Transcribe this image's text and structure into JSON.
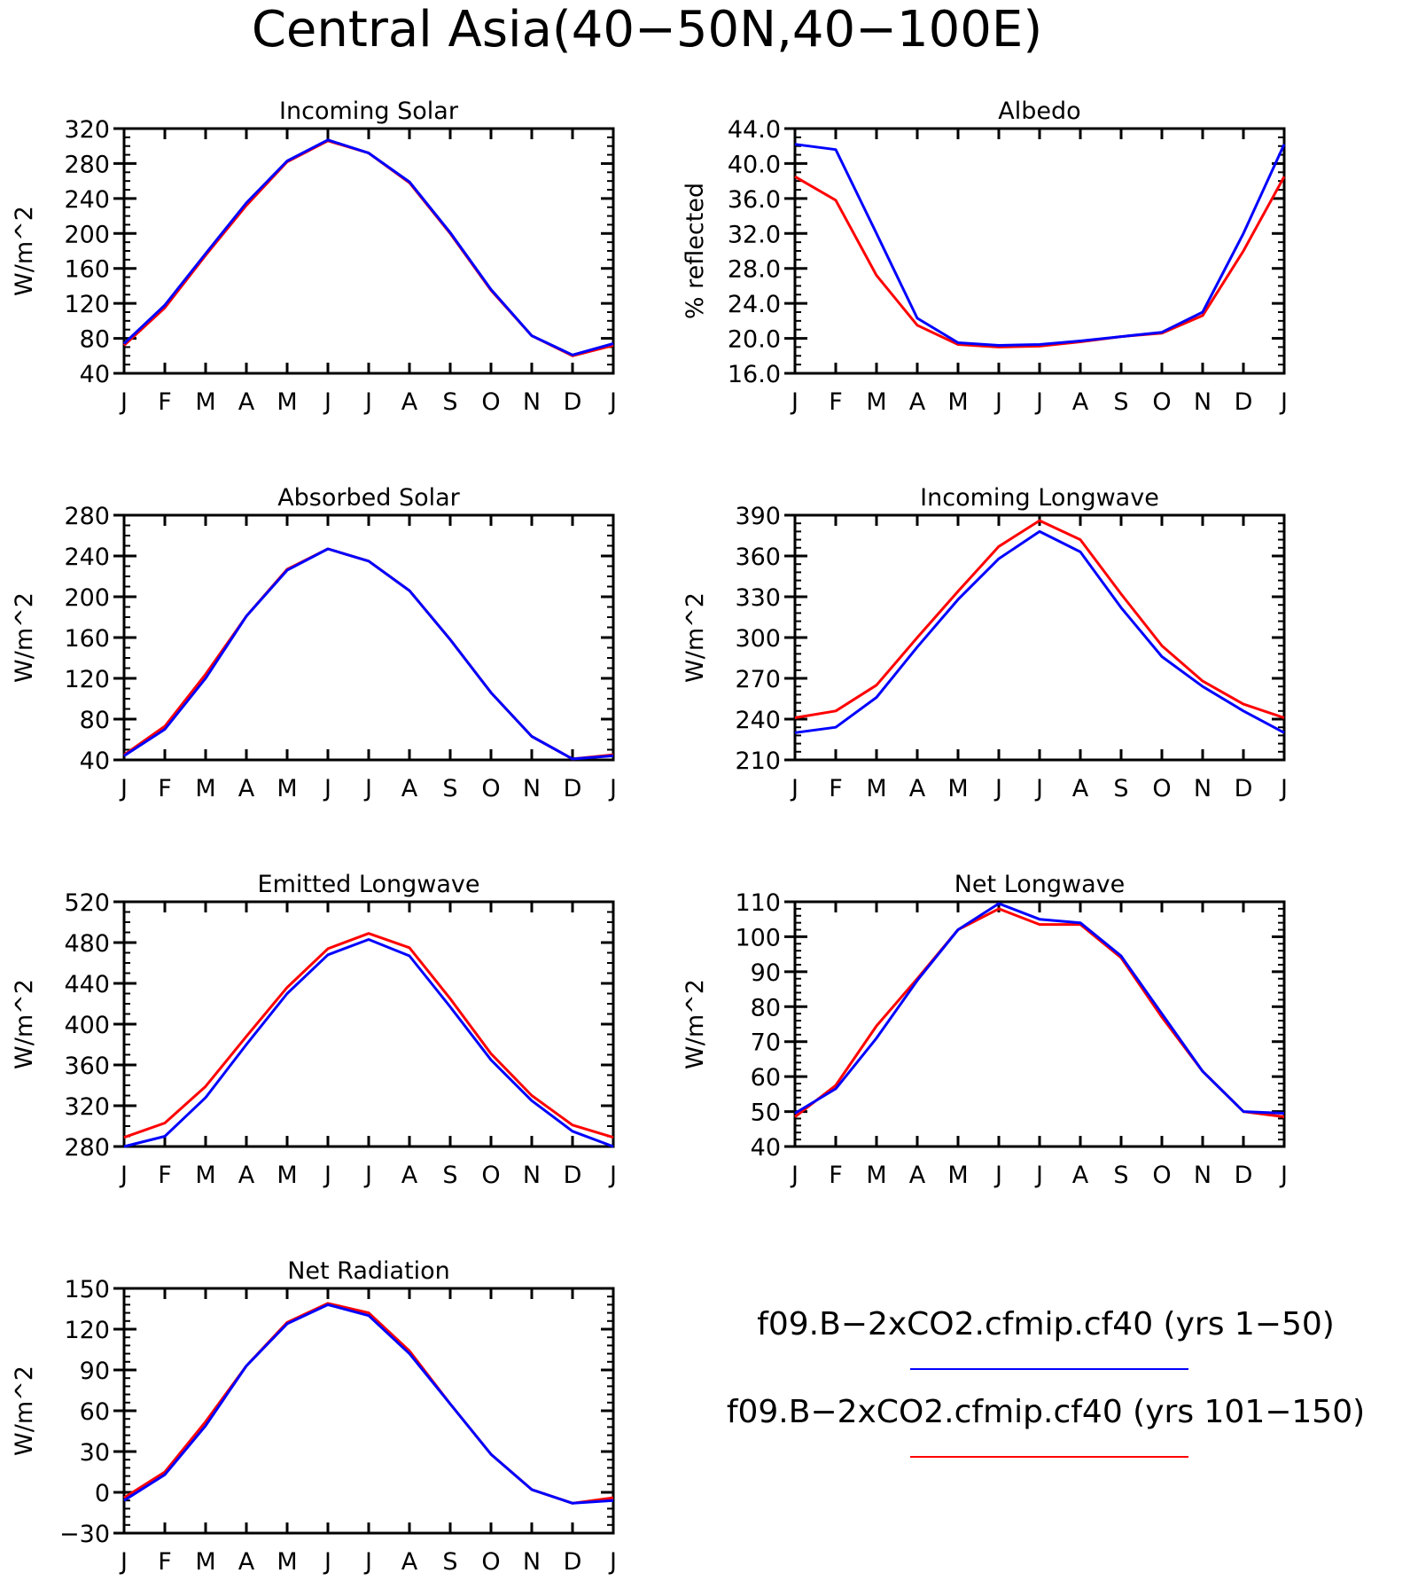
{
  "figure": {
    "title": "Central Asia(40−50N,40−100E)"
  },
  "legend": {
    "entries": [
      {
        "label": "f09.B−2xCO2.cfmip.cf40 (yrs 1−50)",
        "color": "#0000ff"
      },
      {
        "label": "f09.B−2xCO2.cfmip.cf40 (yrs 101−150)",
        "color": "#ff0000"
      }
    ]
  },
  "chart_data": [
    {
      "type": "line",
      "title": "Incoming Solar",
      "xlabel": "",
      "ylabel": "W/m^2",
      "categories": [
        "J",
        "F",
        "M",
        "A",
        "M",
        "J",
        "J",
        "A",
        "S",
        "O",
        "N",
        "D",
        "J"
      ],
      "ylim": [
        40,
        320
      ],
      "yticks": [
        40,
        80,
        120,
        160,
        200,
        240,
        280,
        320
      ],
      "ytick_labels": [
        "40",
        "80",
        "120",
        "160",
        "200",
        "240",
        "280",
        "320"
      ],
      "minor_step": 10,
      "series": [
        {
          "color": "#ff0000",
          "values": [
            72,
            115,
            175,
            232,
            282,
            306,
            292,
            258,
            200,
            135,
            83,
            60,
            72
          ]
        },
        {
          "color": "#0000ff",
          "values": [
            74,
            118,
            177,
            235,
            283,
            307,
            292,
            259,
            201,
            136,
            83,
            61,
            74
          ]
        }
      ]
    },
    {
      "type": "line",
      "title": "Albedo",
      "xlabel": "",
      "ylabel": "% reflected",
      "categories": [
        "J",
        "F",
        "M",
        "A",
        "M",
        "J",
        "J",
        "A",
        "S",
        "O",
        "N",
        "D",
        "J"
      ],
      "ylim": [
        16,
        44
      ],
      "yticks": [
        16,
        20,
        24,
        28,
        32,
        36,
        40,
        44
      ],
      "ytick_labels": [
        "16.0",
        "20.0",
        "24.0",
        "28.0",
        "32.0",
        "36.0",
        "40.0",
        "44.0"
      ],
      "minor_step": 1,
      "series": [
        {
          "color": "#ff0000",
          "values": [
            38.5,
            35.8,
            27.2,
            21.5,
            19.3,
            19.0,
            19.1,
            19.6,
            20.2,
            20.6,
            22.6,
            30.0,
            38.5
          ]
        },
        {
          "color": "#0000ff",
          "values": [
            42.2,
            41.6,
            32.0,
            22.3,
            19.5,
            19.2,
            19.3,
            19.7,
            20.2,
            20.7,
            23.0,
            32.0,
            42.2
          ]
        }
      ]
    },
    {
      "type": "line",
      "title": "Absorbed Solar",
      "xlabel": "",
      "ylabel": "W/m^2",
      "categories": [
        "J",
        "F",
        "M",
        "A",
        "M",
        "J",
        "J",
        "A",
        "S",
        "O",
        "N",
        "D",
        "J"
      ],
      "ylim": [
        40,
        280
      ],
      "yticks": [
        40,
        80,
        120,
        160,
        200,
        240,
        280
      ],
      "ytick_labels": [
        "40",
        "80",
        "120",
        "160",
        "200",
        "240",
        "280"
      ],
      "minor_step": 10,
      "series": [
        {
          "color": "#ff0000",
          "values": [
            45,
            73,
            124,
            181,
            227,
            247,
            235,
            206,
            158,
            106,
            63,
            41,
            45
          ]
        },
        {
          "color": "#0000ff",
          "values": [
            44,
            70,
            120,
            181,
            226,
            247,
            235,
            206,
            158,
            106,
            63,
            41,
            44
          ]
        }
      ]
    },
    {
      "type": "line",
      "title": "Incoming Longwave",
      "xlabel": "",
      "ylabel": "W/m^2",
      "categories": [
        "J",
        "F",
        "M",
        "A",
        "M",
        "J",
        "J",
        "A",
        "S",
        "O",
        "N",
        "D",
        "J"
      ],
      "ylim": [
        210,
        390
      ],
      "yticks": [
        210,
        240,
        270,
        300,
        330,
        360,
        390
      ],
      "ytick_labels": [
        "210",
        "240",
        "270",
        "300",
        "330",
        "360",
        "390"
      ],
      "minor_step": 6,
      "series": [
        {
          "color": "#ff0000",
          "values": [
            241,
            246,
            265,
            300,
            334,
            367,
            386,
            372,
            332,
            294,
            268,
            251,
            241
          ]
        },
        {
          "color": "#0000ff",
          "values": [
            230,
            234,
            256,
            293,
            328,
            358,
            378,
            363,
            322,
            286,
            264,
            246,
            230
          ]
        }
      ]
    },
    {
      "type": "line",
      "title": "Emitted Longwave",
      "xlabel": "",
      "ylabel": "W/m^2",
      "categories": [
        "J",
        "F",
        "M",
        "A",
        "M",
        "J",
        "J",
        "A",
        "S",
        "O",
        "N",
        "D",
        "J"
      ],
      "ylim": [
        280,
        520
      ],
      "yticks": [
        280,
        320,
        360,
        400,
        440,
        480,
        520
      ],
      "ytick_labels": [
        "280",
        "320",
        "360",
        "400",
        "440",
        "480",
        "520"
      ],
      "minor_step": 10,
      "series": [
        {
          "color": "#ff0000",
          "values": [
            289,
            303,
            339,
            388,
            436,
            474,
            489,
            475,
            425,
            371,
            330,
            301,
            289
          ]
        },
        {
          "color": "#0000ff",
          "values": [
            280,
            290,
            328,
            380,
            430,
            468,
            483,
            467,
            417,
            365,
            325,
            295,
            280
          ]
        }
      ]
    },
    {
      "type": "line",
      "title": "Net Longwave",
      "xlabel": "",
      "ylabel": "W/m^2",
      "categories": [
        "J",
        "F",
        "M",
        "A",
        "M",
        "J",
        "J",
        "A",
        "S",
        "O",
        "N",
        "D",
        "J"
      ],
      "ylim": [
        40,
        110
      ],
      "yticks": [
        40,
        50,
        60,
        70,
        80,
        90,
        100,
        110
      ],
      "ytick_labels": [
        "40",
        "50",
        "60",
        "70",
        "80",
        "90",
        "100",
        "110"
      ],
      "minor_step": 2,
      "series": [
        {
          "color": "#ff0000",
          "values": [
            48.5,
            57.5,
            74.5,
            88.0,
            102.0,
            108.0,
            103.5,
            103.5,
            94.0,
            77.0,
            61.5,
            50.0,
            48.5
          ]
        },
        {
          "color": "#0000ff",
          "values": [
            49.5,
            56.5,
            71.0,
            87.5,
            102.0,
            109.5,
            105.0,
            104.0,
            94.5,
            78.0,
            61.5,
            50.0,
            49.5
          ]
        }
      ]
    },
    {
      "type": "line",
      "title": "Net Radiation",
      "xlabel": "",
      "ylabel": "W/m^2",
      "categories": [
        "J",
        "F",
        "M",
        "A",
        "M",
        "J",
        "J",
        "A",
        "S",
        "O",
        "N",
        "D",
        "J"
      ],
      "ylim": [
        -30,
        150
      ],
      "yticks": [
        -30,
        0,
        30,
        60,
        90,
        120,
        150
      ],
      "ytick_labels": [
        "−30",
        "0",
        "30",
        "60",
        "90",
        "120",
        "150"
      ],
      "minor_step": 6,
      "series": [
        {
          "color": "#ff0000",
          "values": [
            -4,
            15,
            52,
            93,
            125,
            139,
            132,
            104,
            65,
            28,
            2,
            -8,
            -4
          ]
        },
        {
          "color": "#0000ff",
          "values": [
            -6,
            13,
            49,
            93,
            124,
            138,
            130,
            102,
            65,
            28,
            2,
            -8,
            -6
          ]
        }
      ]
    }
  ]
}
